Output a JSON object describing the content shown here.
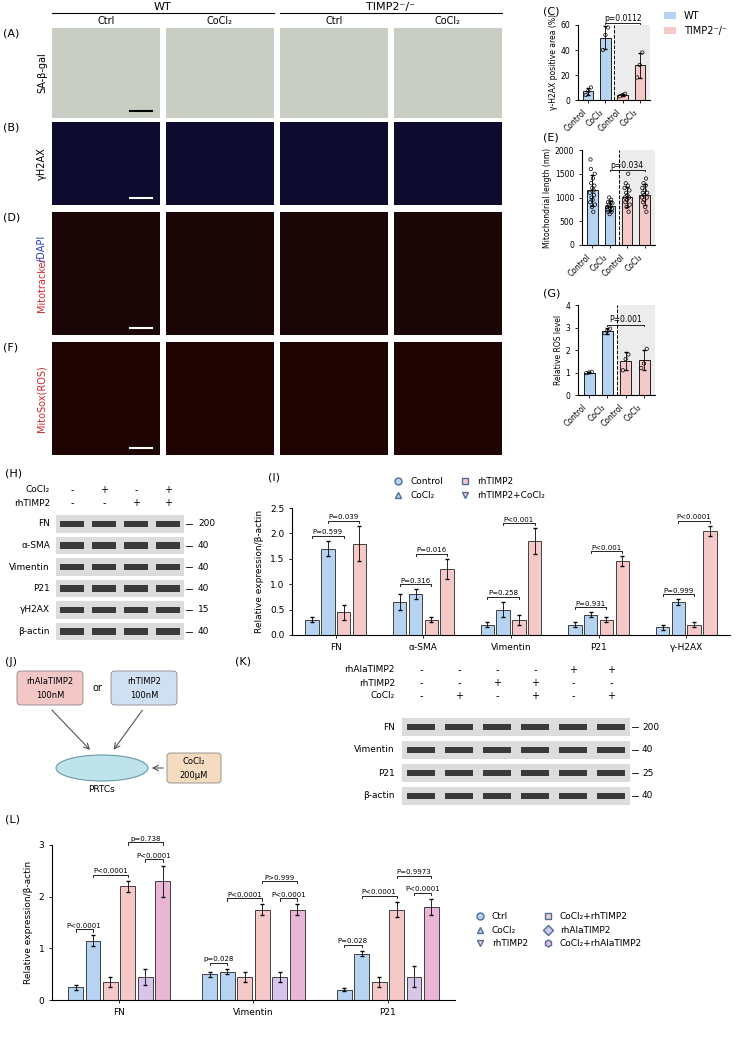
{
  "legend_top": [
    {
      "name": "WT",
      "color": "#b7d3f2"
    },
    {
      "name": "TIMP2⁻/⁻",
      "color": "#f6c9c9"
    }
  ],
  "image_panels": {
    "groups": [
      "WT",
      "TIMP2⁻/⁻"
    ],
    "conditions": [
      "Ctrl",
      "CoCl₂",
      "Ctrl",
      "CoCl₂"
    ],
    "rows": [
      {
        "panel": "(A)",
        "stain": [
          {
            "text": "SA-β-gal",
            "color": "#000000"
          }
        ],
        "color": "#c9cec4"
      },
      {
        "panel": "(B)",
        "stain": [
          {
            "text": "γH2AX",
            "color": "#000000"
          }
        ],
        "color": "#0d0b2e"
      },
      {
        "panel": "(D)",
        "stain": [
          {
            "text": "Mitotracker",
            "color": "#d62728"
          },
          {
            "text": "/DAPI",
            "color": "#1f3fbf"
          }
        ],
        "color": "#1a0606"
      },
      {
        "panel": "(F)",
        "stain": [
          {
            "text": "MitoSox(ROS)",
            "color": "#d62728"
          }
        ],
        "color": "#1f0404"
      }
    ]
  },
  "chart_data": [
    {
      "panel": "(C)",
      "type": "bar",
      "ylabel": "γ-H2AX positive area (%)",
      "categories": [
        "Control",
        "CoCl₂",
        "Control",
        "CoCl₂"
      ],
      "values": [
        7,
        50,
        4,
        28
      ],
      "errors": [
        3,
        9,
        1,
        10
      ],
      "points": [
        [
          4,
          7,
          10
        ],
        [
          40,
          52,
          58
        ],
        [
          3,
          4,
          5
        ],
        [
          18,
          28,
          38
        ]
      ],
      "colors": [
        "#b7d3f2",
        "#b7d3f2",
        "#f6c9c9",
        "#f6c9c9"
      ],
      "ylim": [
        0,
        60
      ],
      "yticks": [
        0,
        20,
        40,
        60
      ],
      "comparisons": [
        {
          "from": 1,
          "to": 3,
          "text": "p=0.0112"
        }
      ]
    },
    {
      "panel": "(E)",
      "type": "bar",
      "ylabel": "Mitochondrial length (nm)",
      "categories": [
        "Control",
        "CoCl₂",
        "Control",
        "CoCl₂"
      ],
      "values": [
        1150,
        820,
        1010,
        1060
      ],
      "errors": [
        330,
        110,
        220,
        220
      ],
      "points": [
        [
          1100,
          900,
          1800,
          1600,
          1300,
          1000,
          800,
          1200,
          950,
          1400,
          700,
          1150,
          1050,
          1250,
          1500,
          850
        ],
        [
          800,
          750,
          900,
          700,
          850,
          1000,
          650,
          780,
          820,
          900,
          950,
          700,
          760,
          880
        ],
        [
          1200,
          1000,
          900,
          1300,
          1100,
          800,
          950,
          1050,
          1250,
          1500,
          700,
          1000,
          1150,
          850
        ],
        [
          1000,
          1200,
          1100,
          900,
          1300,
          1050,
          950,
          1150,
          800,
          1250,
          1400,
          700,
          1000,
          1100
        ]
      ],
      "colors": [
        "#b7d3f2",
        "#b7d3f2",
        "#f6c9c9",
        "#f6c9c9"
      ],
      "ylim": [
        0,
        2000
      ],
      "yticks": [
        0,
        500,
        1000,
        1500,
        2000
      ],
      "comparisons": [
        {
          "from": 1,
          "to": 3,
          "text": "p=0.034"
        }
      ]
    },
    {
      "panel": "(G)",
      "type": "bar",
      "ylabel": "Relative ROS level",
      "categories": [
        "Control",
        "CoCl₂",
        "Control",
        "CoCl₂"
      ],
      "values": [
        1.0,
        2.85,
        1.5,
        1.55
      ],
      "errors": [
        0.03,
        0.12,
        0.4,
        0.45
      ],
      "points": [
        [
          0.97,
          1.0,
          1.03
        ],
        [
          2.75,
          2.85,
          2.95
        ],
        [
          1.1,
          1.6,
          1.8
        ],
        [
          1.2,
          1.4,
          2.05
        ]
      ],
      "colors": [
        "#b7d3f2",
        "#b7d3f2",
        "#f6c9c9",
        "#f6c9c9"
      ],
      "ylim": [
        0,
        4
      ],
      "yticks": [
        0,
        1,
        2,
        3,
        4
      ],
      "comparisons": [
        {
          "from": 1,
          "to": 3,
          "text": "P=0.001"
        }
      ]
    },
    {
      "panel": "(I)",
      "type": "grouped_bar",
      "ylabel": "Relative expression/β-actin",
      "categories": [
        "FN",
        "α-SMA",
        "Vimentin",
        "P21",
        "γ-H2AX"
      ],
      "ylim": [
        0,
        2.5
      ],
      "yticks": [
        0.0,
        0.5,
        1.0,
        1.5,
        2.0,
        2.5
      ],
      "legend": "top",
      "series": [
        {
          "name": "Control",
          "color": "#b7d3f2",
          "marker": "circle",
          "values": [
            0.3,
            0.65,
            0.2,
            0.2,
            0.15
          ],
          "errors": [
            0.05,
            0.15,
            0.05,
            0.05,
            0.05
          ]
        },
        {
          "name": "CoCl₂",
          "color": "#b7d3f2",
          "marker": "triangle",
          "values": [
            1.7,
            0.8,
            0.5,
            0.4,
            0.65
          ],
          "errors": [
            0.15,
            0.1,
            0.15,
            0.05,
            0.05
          ]
        },
        {
          "name": "rhTIMP2",
          "color": "#f6c9c9",
          "marker": "square",
          "values": [
            0.45,
            0.3,
            0.3,
            0.3,
            0.2
          ],
          "errors": [
            0.15,
            0.05,
            0.1,
            0.05,
            0.05
          ]
        },
        {
          "name": "rhTIMP2+CoCl₂",
          "color": "#f6c9c9",
          "marker": "triangle_down",
          "values": [
            1.8,
            1.3,
            1.85,
            1.45,
            2.05
          ],
          "errors": [
            0.35,
            0.2,
            0.25,
            0.1,
            0.1
          ]
        }
      ],
      "comparisons": [
        {
          "group": 0,
          "from": 0,
          "to": 2,
          "text": "P=0.599"
        },
        {
          "group": 0,
          "from": 1,
          "to": 3,
          "text": "P=0.039"
        },
        {
          "group": 1,
          "from": 0,
          "to": 2,
          "text": "P=0.316"
        },
        {
          "group": 1,
          "from": 1,
          "to": 3,
          "text": "P=0.016"
        },
        {
          "group": 2,
          "from": 0,
          "to": 2,
          "text": "P=0.258"
        },
        {
          "group": 2,
          "from": 1,
          "to": 3,
          "text": "P<0.001"
        },
        {
          "group": 3,
          "from": 0,
          "to": 2,
          "text": "P=0.931"
        },
        {
          "group": 3,
          "from": 1,
          "to": 3,
          "text": "P<0.001"
        },
        {
          "group": 4,
          "from": 0,
          "to": 2,
          "text": "P=0.999"
        },
        {
          "group": 4,
          "from": 1,
          "to": 3,
          "text": "P<0.0001"
        }
      ]
    },
    {
      "panel": "(L)",
      "type": "grouped_bar",
      "ylabel": "Relative expression/β-actin",
      "categories": [
        "FN",
        "Vimentin",
        "P21"
      ],
      "ylim": [
        0,
        3
      ],
      "yticks": [
        0,
        1,
        2,
        3
      ],
      "legend": "right",
      "series": [
        {
          "name": "Ctrl",
          "color": "#b7d3f2",
          "marker": "circle",
          "values": [
            0.25,
            0.5,
            0.2
          ],
          "errors": [
            0.05,
            0.05,
            0.03
          ]
        },
        {
          "name": "CoCl₂",
          "color": "#b7d3f2",
          "marker": "triangle",
          "values": [
            1.15,
            0.55,
            0.9
          ],
          "errors": [
            0.1,
            0.05,
            0.05
          ]
        },
        {
          "name": "rhTIMP2",
          "color": "#f6c9c9",
          "marker": "triangle_down",
          "values": [
            0.35,
            0.45,
            0.35
          ],
          "errors": [
            0.1,
            0.1,
            0.1
          ]
        },
        {
          "name": "CoCl₂+rhTIMP2",
          "color": "#f6c9c9",
          "marker": "square",
          "values": [
            2.2,
            1.75,
            1.75
          ],
          "errors": [
            0.1,
            0.1,
            0.15
          ]
        },
        {
          "name": "rhAlaTIMP2",
          "color": "#d8c6ea",
          "marker": "diamond",
          "values": [
            0.45,
            0.45,
            0.45
          ],
          "errors": [
            0.15,
            0.1,
            0.2
          ]
        },
        {
          "name": "CoCl₂+rhAlaTIMP2",
          "color": "#e9b6d6",
          "marker": "hexagon",
          "values": [
            2.3,
            1.75,
            1.8
          ],
          "errors": [
            0.3,
            0.1,
            0.15
          ]
        }
      ],
      "comparisons": [
        {
          "group": 0,
          "from": 0,
          "to": 1,
          "text": "P<0.0001"
        },
        {
          "group": 0,
          "from": 1,
          "to": 3,
          "text": "P<0.0001"
        },
        {
          "group": 0,
          "from": 4,
          "to": 5,
          "text": "P<0.0001"
        },
        {
          "group": 0,
          "from": 3,
          "to": 5,
          "text": "p=0.738"
        },
        {
          "group": 1,
          "from": 0,
          "to": 1,
          "text": "p=0.028"
        },
        {
          "group": 1,
          "from": 1,
          "to": 3,
          "text": "P<0.0001"
        },
        {
          "group": 1,
          "from": 4,
          "to": 5,
          "text": "P<0.0001"
        },
        {
          "group": 1,
          "from": 3,
          "to": 5,
          "text": "P>0.999"
        },
        {
          "group": 2,
          "from": 0,
          "to": 1,
          "text": "P=0.028"
        },
        {
          "group": 2,
          "from": 1,
          "to": 3,
          "text": "P<0.0001"
        },
        {
          "group": 2,
          "from": 4,
          "to": 5,
          "text": "P<0.0001"
        },
        {
          "group": 2,
          "from": 3,
          "to": 5,
          "text": "P=0.9973"
        }
      ]
    }
  ],
  "blots": [
    {
      "panel": "(H)",
      "treatments": [
        {
          "name": "CoCl₂",
          "signs": [
            "-",
            "+",
            "-",
            "+"
          ]
        },
        {
          "name": "rhTIMP2",
          "signs": [
            "-",
            "-",
            "+",
            "+"
          ]
        }
      ],
      "bands": [
        {
          "name": "FN",
          "mw": 200
        },
        {
          "name": "α-SMA",
          "mw": 40
        },
        {
          "name": "Vimentin",
          "mw": 40
        },
        {
          "name": "P21",
          "mw": 40
        },
        {
          "name": "γH2AX",
          "mw": 15
        },
        {
          "name": "β-actin",
          "mw": 40
        }
      ]
    },
    {
      "panel": "(K)",
      "treatments": [
        {
          "name": "rhAlaTIMP2",
          "signs": [
            "-",
            "-",
            "-",
            "-",
            "+",
            "+"
          ]
        },
        {
          "name": "rhTIMP2",
          "signs": [
            "-",
            "-",
            "+",
            "+",
            "-",
            "-"
          ]
        },
        {
          "name": "CoCl₂",
          "signs": [
            "-",
            "+",
            "-",
            "+",
            "-",
            "+"
          ]
        }
      ],
      "bands": [
        {
          "name": "FN",
          "mw": 200
        },
        {
          "name": "Vimentin",
          "mw": 40
        },
        {
          "name": "P21",
          "mw": 25
        },
        {
          "name": "β-actin",
          "mw": 40
        }
      ]
    }
  ],
  "diagram": {
    "panel": "(J)",
    "reagents": [
      {
        "name": "rhAlaTIMP2",
        "dose": "100nM",
        "color": "#f4c7c7"
      },
      {
        "name": "rhTIMP2",
        "dose": "100nM",
        "color": "#cfe0f3"
      }
    ],
    "connector": "or",
    "cells": "PRTCs",
    "stimulus": {
      "name": "CoCl₂",
      "dose": "200μM",
      "color": "#f5dcc0"
    }
  }
}
